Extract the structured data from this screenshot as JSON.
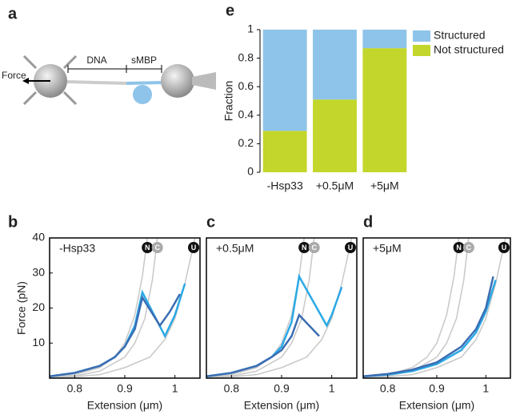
{
  "diagram": {
    "label": "a",
    "force": "Force",
    "dna": "DNA",
    "smbp": "sMBP"
  },
  "chart_data": [
    {
      "type": "stacked-bar",
      "label": "e",
      "y_label": "Fraction",
      "categories": [
        "-Hsp33",
        "+0.5μM",
        "+5μM"
      ],
      "series": [
        {
          "name": "Not structured",
          "color": "#c3d62b",
          "values": [
            0.29,
            0.51,
            0.87
          ]
        },
        {
          "name": "Structured",
          "color": "#8ec4e9",
          "values": [
            0.71,
            0.49,
            0.13
          ]
        }
      ],
      "ylim": [
        0,
        1
      ],
      "yticks": [
        0,
        0.2,
        0.4,
        0.6,
        0.8,
        1
      ]
    },
    {
      "type": "line",
      "label": "b",
      "annotation": "-Hsp33",
      "x_label": "Extension (μm)",
      "y_label": "Force (pN)",
      "xlim": [
        0.75,
        1.05
      ],
      "xticks": [
        0.8,
        0.9,
        1
      ],
      "ylim": [
        0,
        40
      ],
      "yticks": [
        10,
        20,
        30,
        40
      ],
      "series": [
        {
          "name": "N",
          "color": "#c8c8c8",
          "x": [
            0.75,
            0.8,
            0.85,
            0.88,
            0.9,
            0.92,
            0.935,
            0.945
          ],
          "values": [
            0.3,
            1,
            3,
            6,
            10,
            18,
            29,
            40
          ]
        },
        {
          "name": "C",
          "color": "#c8c8c8",
          "x": [
            0.75,
            0.8,
            0.85,
            0.9,
            0.92,
            0.94,
            0.955,
            0.965
          ],
          "values": [
            0.2,
            0.6,
            2,
            6,
            10,
            17,
            28,
            40
          ]
        },
        {
          "name": "U",
          "color": "#c8c8c8",
          "x": [
            0.75,
            0.8,
            0.85,
            0.9,
            0.95,
            0.98,
            1.0,
            1.02,
            1.04
          ],
          "values": [
            0.1,
            0.4,
            1,
            3,
            6,
            11,
            17,
            27,
            40
          ]
        },
        {
          "color": "#2ba9e6",
          "x": [
            0.75,
            0.8,
            0.85,
            0.88,
            0.9,
            0.92,
            0.935,
            0.98,
            1.0,
            1.02
          ],
          "values": [
            0.5,
            1.5,
            3.5,
            6,
            9,
            15,
            24.5,
            12,
            18,
            27
          ]
        },
        {
          "color": "#3b6db3",
          "x": [
            0.75,
            0.8,
            0.85,
            0.88,
            0.9,
            0.92,
            0.935,
            0.97,
            0.99,
            1.01
          ],
          "values": [
            0.5,
            1.5,
            3.5,
            6,
            9,
            14,
            23,
            15,
            19,
            24
          ]
        }
      ]
    },
    {
      "type": "line",
      "label": "c",
      "annotation": "+0.5μM",
      "x_label": "Extension (μm)",
      "xlim": [
        0.75,
        1.05
      ],
      "xticks": [
        0.8,
        0.9,
        1
      ],
      "ylim": [
        0,
        40
      ],
      "series": [
        {
          "name": "N",
          "color": "#c8c8c8",
          "x": [
            0.75,
            0.8,
            0.85,
            0.88,
            0.9,
            0.92,
            0.935,
            0.945
          ],
          "values": [
            0.3,
            1,
            3,
            6,
            10,
            18,
            29,
            40
          ]
        },
        {
          "name": "C",
          "color": "#c8c8c8",
          "x": [
            0.75,
            0.8,
            0.85,
            0.9,
            0.92,
            0.94,
            0.955,
            0.965
          ],
          "values": [
            0.2,
            0.6,
            2,
            6,
            10,
            17,
            28,
            40
          ]
        },
        {
          "name": "U",
          "color": "#c8c8c8",
          "x": [
            0.75,
            0.8,
            0.85,
            0.9,
            0.95,
            0.98,
            1.0,
            1.02,
            1.04
          ],
          "values": [
            0.1,
            0.4,
            1,
            3,
            6,
            11,
            17,
            27,
            40
          ]
        },
        {
          "color": "#2ba9e6",
          "x": [
            0.75,
            0.8,
            0.85,
            0.88,
            0.9,
            0.92,
            0.935,
            0.99,
            1.0,
            1.02
          ],
          "values": [
            0.5,
            1.5,
            3.5,
            6,
            9,
            16,
            29,
            15,
            18,
            26
          ]
        },
        {
          "color": "#3b6db3",
          "x": [
            0.75,
            0.8,
            0.85,
            0.88,
            0.9,
            0.92,
            0.935,
            0.975
          ],
          "values": [
            0.5,
            1.5,
            3.5,
            6,
            8,
            12,
            18,
            12
          ]
        }
      ]
    },
    {
      "type": "line",
      "label": "d",
      "annotation": "+5μM",
      "x_label": "Extension (μm)",
      "xlim": [
        0.75,
        1.05
      ],
      "xticks": [
        0.8,
        0.9,
        1
      ],
      "ylim": [
        0,
        40
      ],
      "series": [
        {
          "name": "N",
          "color": "#c8c8c8",
          "x": [
            0.75,
            0.8,
            0.85,
            0.88,
            0.9,
            0.92,
            0.935,
            0.945
          ],
          "values": [
            0.3,
            1,
            3,
            6,
            10,
            18,
            29,
            40
          ]
        },
        {
          "name": "C",
          "color": "#c8c8c8",
          "x": [
            0.75,
            0.8,
            0.85,
            0.9,
            0.92,
            0.94,
            0.955,
            0.965
          ],
          "values": [
            0.2,
            0.6,
            2,
            6,
            10,
            17,
            28,
            40
          ]
        },
        {
          "name": "U",
          "color": "#c8c8c8",
          "x": [
            0.75,
            0.8,
            0.85,
            0.9,
            0.95,
            0.98,
            1.0,
            1.02,
            1.04
          ],
          "values": [
            0.1,
            0.4,
            1,
            3,
            6,
            11,
            17,
            27,
            40
          ]
        },
        {
          "color": "#2ba9e6",
          "x": [
            0.75,
            0.8,
            0.85,
            0.9,
            0.95,
            0.98,
            1.0,
            1.02
          ],
          "values": [
            0.5,
            1,
            2,
            4,
            8,
            13,
            19,
            28
          ]
        },
        {
          "color": "#3b6db3",
          "x": [
            0.75,
            0.8,
            0.85,
            0.9,
            0.95,
            0.98,
            1.0,
            1.015
          ],
          "values": [
            0.5,
            1.2,
            2.4,
            4.5,
            9,
            14,
            20,
            29
          ]
        }
      ]
    }
  ]
}
